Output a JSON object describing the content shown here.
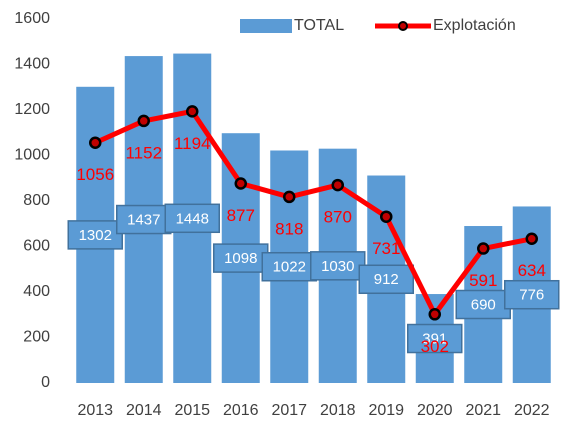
{
  "chart_data": {
    "type": "bar",
    "categories": [
      "2013",
      "2014",
      "2015",
      "2016",
      "2017",
      "2018",
      "2019",
      "2020",
      "2021",
      "2022"
    ],
    "series": [
      {
        "name": "TOTAL",
        "type": "bar",
        "color": "#5b9bd5",
        "values": [
          1302,
          1437,
          1448,
          1098,
          1022,
          1030,
          912,
          391,
          690,
          776
        ]
      },
      {
        "name": "Explotación",
        "type": "line",
        "color": "#ff0000",
        "values": [
          1056,
          1152,
          1194,
          877,
          818,
          870,
          731,
          302,
          591,
          634
        ]
      }
    ],
    "ylim": [
      0,
      1600
    ],
    "yticks": [
      0,
      200,
      400,
      600,
      800,
      1000,
      1200,
      1400,
      1600
    ],
    "grid": false,
    "legend": "top"
  }
}
